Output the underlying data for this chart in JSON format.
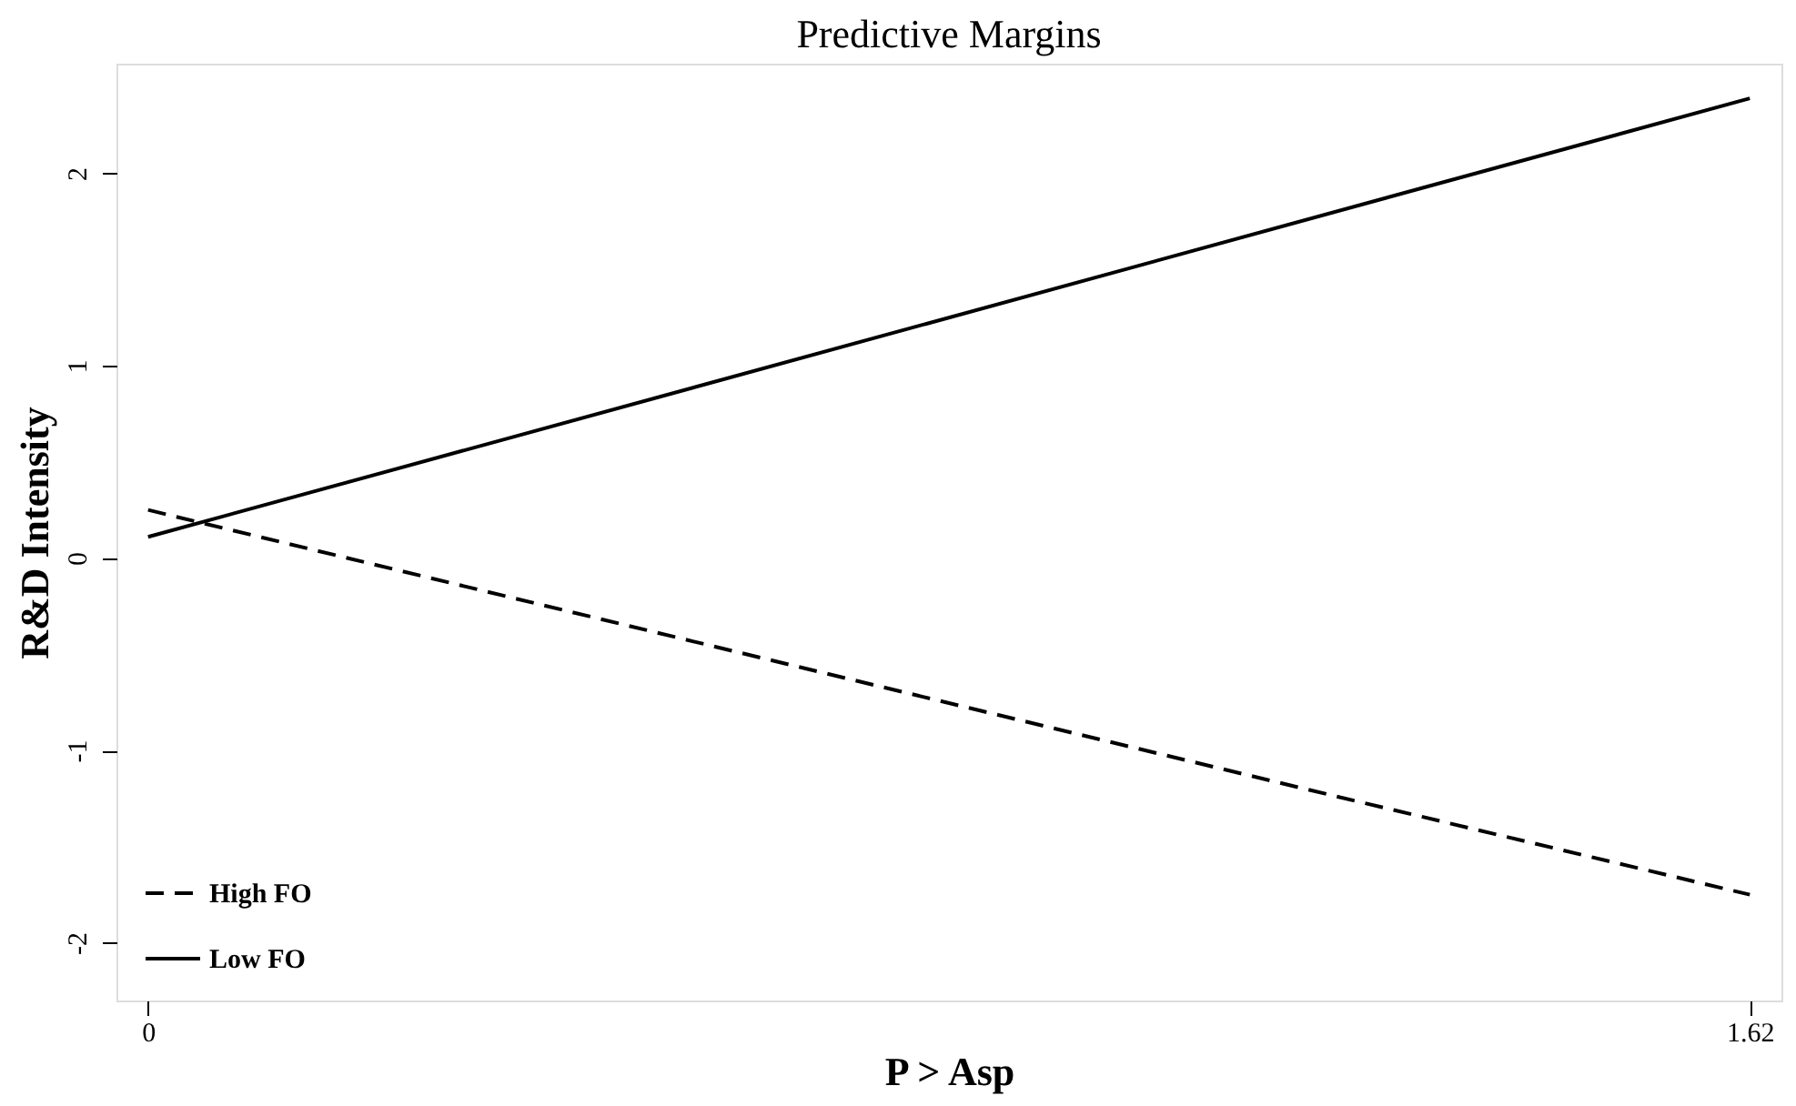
{
  "chart_data": {
    "type": "line",
    "title": "Predictive Margins",
    "xlabel": "P > Asp",
    "ylabel": "R&D Intensity",
    "xlim": [
      -0.032,
      1.652
    ],
    "xticks": [
      0,
      1.62
    ],
    "ylim": [
      -2.3,
      2.57
    ],
    "yticks": [
      -2,
      -1,
      0,
      1,
      2
    ],
    "grid": false,
    "legend": "bottom left",
    "series": [
      {
        "name": "High FO",
        "color": "#000000",
        "line_style": "dashed",
        "x": [
          0,
          1.17,
          1.62
        ],
        "values": [
          0.25,
          -1.2,
          -1.75
        ]
      },
      {
        "name": "Low FO",
        "color": "#000000",
        "line_style": "solid",
        "x": [
          0,
          1.62
        ],
        "values": [
          0.11,
          2.39
        ]
      }
    ]
  }
}
